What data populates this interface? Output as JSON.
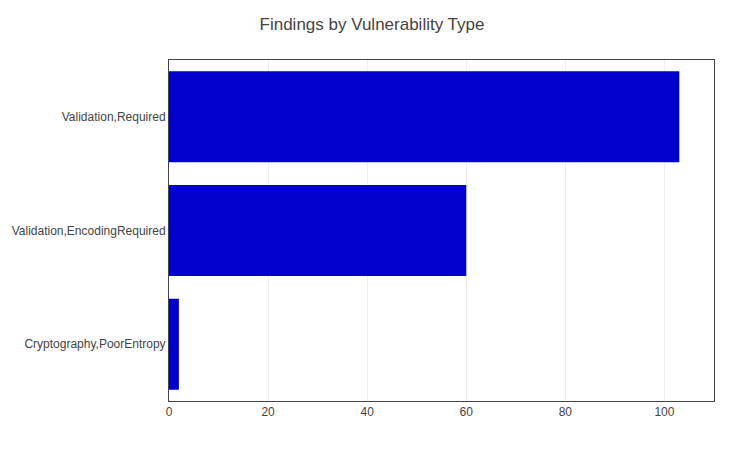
{
  "chart_data": {
    "type": "bar",
    "orientation": "horizontal",
    "title": "Findings by Vulnerability Type",
    "categories": [
      "Cryptography,PoorEntropy",
      "Validation,EncodingRequired",
      "Validation,Required"
    ],
    "values": [
      2,
      60,
      103
    ],
    "color": "#0000CC",
    "xlim": [
      0,
      110
    ],
    "xticks": [
      0,
      20,
      40,
      60,
      80,
      100
    ],
    "grid": true
  }
}
